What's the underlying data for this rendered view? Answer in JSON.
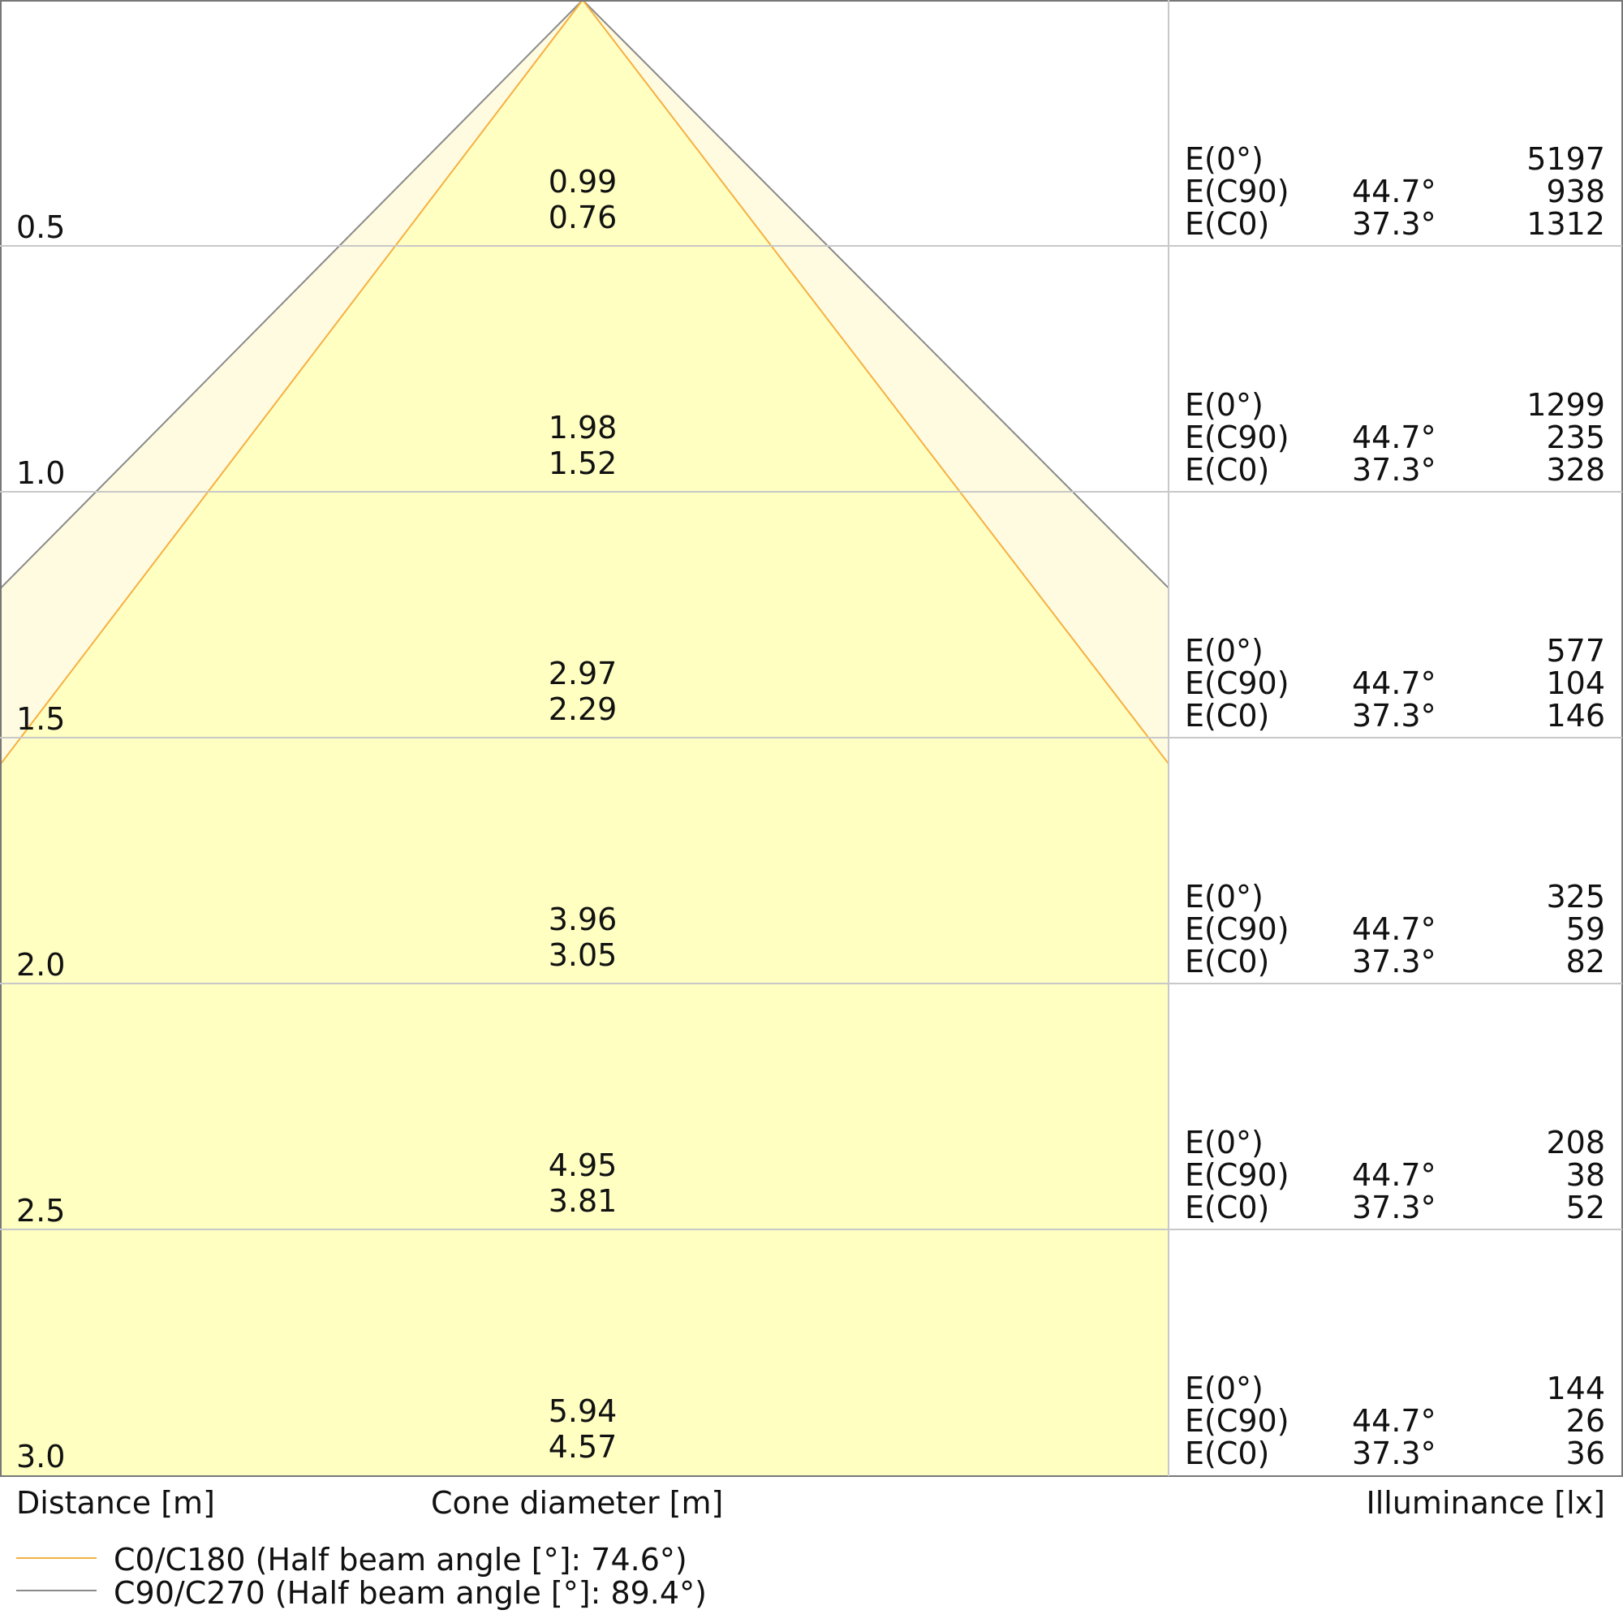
{
  "chart_data": {
    "type": "area",
    "xlabel": "Cone diameter [m]",
    "ylabel": "Distance [m]",
    "right_label": "Illuminance [lx]",
    "grid": true,
    "distance_ticks": [
      "0.5",
      "1.0",
      "1.5",
      "2.0",
      "2.5",
      "3.0"
    ],
    "distances": [
      0.5,
      1.0,
      1.5,
      2.0,
      2.5,
      3.0
    ],
    "series": [
      {
        "name": "C0/C180 (Half beam angle [°]: 74.6°)",
        "color": "#f5b041",
        "half_beam_angle": 37.3,
        "diameters": [
          "0.76",
          "1.52",
          "2.29",
          "3.05",
          "3.81",
          "4.57"
        ]
      },
      {
        "name": "C90/C270 (Half beam angle [°]: 89.4°)",
        "color": "#8a8a8a",
        "half_beam_angle": 44.7,
        "diameters": [
          "0.99",
          "1.98",
          "2.97",
          "3.96",
          "4.95",
          "5.94"
        ]
      }
    ],
    "illuminance_labels": {
      "e0": "E(0°)",
      "c90": "E(C90)",
      "c0": "E(C0)",
      "c90_angle": "44.7°",
      "c0_angle": "37.3°"
    },
    "illuminance": [
      {
        "e0": "5197",
        "c90": "938",
        "c0": "1312"
      },
      {
        "e0": "1299",
        "c90": "235",
        "c0": "328"
      },
      {
        "e0": "577",
        "c90": "104",
        "c0": "146"
      },
      {
        "e0": "325",
        "c90": "59",
        "c0": "82"
      },
      {
        "e0": "208",
        "c90": "38",
        "c0": "52"
      },
      {
        "e0": "144",
        "c90": "26",
        "c0": "36"
      }
    ],
    "fill_colors": {
      "c0": "#ffffc2",
      "c90": "#fffbe0"
    }
  }
}
